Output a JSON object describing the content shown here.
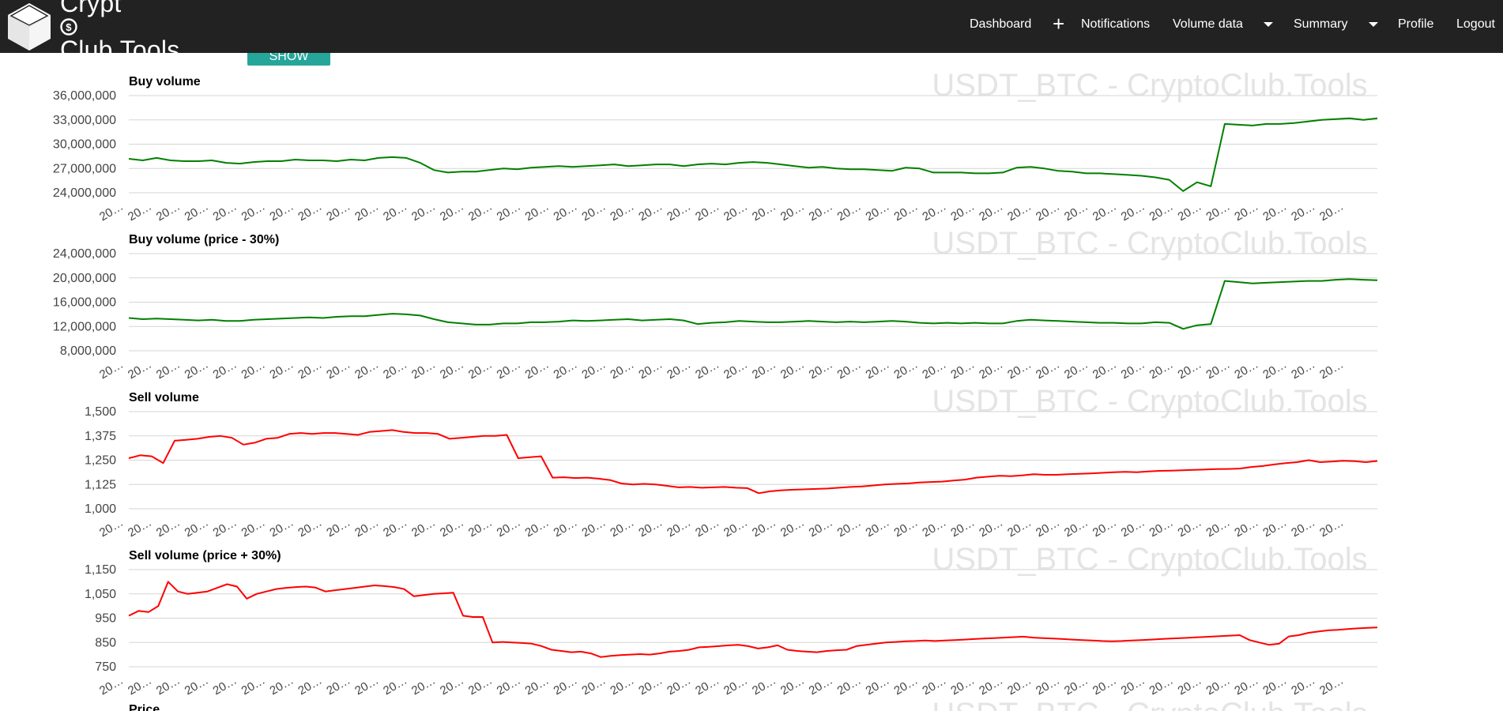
{
  "brand": {
    "name": "CryptoClub.Tools",
    "prefix": "Crypt",
    "suffix": "Club.Tools"
  },
  "nav": {
    "dashboard": "Dashboard",
    "notifications": "Notifications",
    "volume_data": "Volume data",
    "summary": "Summary",
    "profile": "Profile",
    "logout": "Logout"
  },
  "controls": {
    "show_button": "Show"
  },
  "watermark": "USDT_BTC - CryptoClub.Tools",
  "partial_next_title": "Price",
  "x_tick_label": "20…",
  "colors": {
    "navbar": "#222222",
    "button": "#26a69a",
    "buy": "#008000",
    "sell": "#ff0000"
  },
  "chart_data": [
    {
      "type": "line",
      "title": "Buy volume",
      "color": "#008000",
      "yticks": [
        "36,000,000",
        "33,000,000",
        "30,000,000",
        "27,000,000",
        "24,000,000"
      ],
      "ylim": [
        24000000,
        36000000
      ],
      "x_tick_count": 44,
      "series": [
        {
          "values": [
            28200000,
            28000000,
            28300000,
            28000000,
            27900000,
            27900000,
            28000000,
            27700000,
            27600000,
            27800000,
            27900000,
            27900000,
            28100000,
            28000000,
            28000000,
            27900000,
            28100000,
            28000000,
            28300000,
            28400000,
            28300000,
            27700000,
            26800000,
            26500000,
            26600000,
            26600000,
            26800000,
            27000000,
            26900000,
            27100000,
            27200000,
            27300000,
            27200000,
            27300000,
            27400000,
            27500000,
            27300000,
            27400000,
            27500000,
            27500000,
            27300000,
            27500000,
            27600000,
            27500000,
            27700000,
            27800000,
            27700000,
            27500000,
            27300000,
            27100000,
            27200000,
            27000000,
            26900000,
            26900000,
            26800000,
            26700000,
            27100000,
            27000000,
            26500000,
            26500000,
            26500000,
            26400000,
            26400000,
            26500000,
            27100000,
            27200000,
            27000000,
            26700000,
            26600000,
            26400000,
            26400000,
            26300000,
            26200000,
            26100000,
            25900000,
            25600000,
            24200000,
            25300000,
            24800000,
            32500000,
            32400000,
            32300000,
            32500000,
            32500000,
            32600000,
            32800000,
            33000000,
            33100000,
            33200000,
            33000000,
            33200000
          ]
        }
      ]
    },
    {
      "type": "line",
      "title": "Buy volume (price - 30%)",
      "color": "#008000",
      "yticks": [
        "24,000,000",
        "20,000,000",
        "16,000,000",
        "12,000,000",
        "8,000,000"
      ],
      "ylim": [
        8000000,
        24000000
      ],
      "x_tick_count": 44,
      "series": [
        {
          "values": [
            13400000,
            13200000,
            13300000,
            13200000,
            13100000,
            13000000,
            13100000,
            12900000,
            12900000,
            13100000,
            13200000,
            13300000,
            13400000,
            13500000,
            13400000,
            13600000,
            13700000,
            13700000,
            13900000,
            14100000,
            14000000,
            13800000,
            13200000,
            12700000,
            12500000,
            12300000,
            12300000,
            12500000,
            12500000,
            12700000,
            12700000,
            12800000,
            13000000,
            12900000,
            13000000,
            13100000,
            13200000,
            13000000,
            13100000,
            13200000,
            13000000,
            12400000,
            12600000,
            12700000,
            12900000,
            12800000,
            12700000,
            12700000,
            12800000,
            12900000,
            12800000,
            12700000,
            12800000,
            12700000,
            12800000,
            12900000,
            12800000,
            12600000,
            12500000,
            12600000,
            12500000,
            12600000,
            12500000,
            12500000,
            12900000,
            13100000,
            13000000,
            12900000,
            12800000,
            12700000,
            12600000,
            12600000,
            12500000,
            12500000,
            12700000,
            12600000,
            11600000,
            12200000,
            12400000,
            19500000,
            19300000,
            19100000,
            19200000,
            19300000,
            19400000,
            19500000,
            19500000,
            19700000,
            19800000,
            19700000,
            19600000
          ]
        }
      ]
    },
    {
      "type": "line",
      "title": "Sell volume",
      "color": "#ff0000",
      "yticks": [
        "1,500",
        "1,375",
        "1,250",
        "1,125",
        "1,000"
      ],
      "ylim": [
        1000,
        1500
      ],
      "x_tick_count": 44,
      "series": [
        {
          "values": [
            1260,
            1275,
            1270,
            1235,
            1350,
            1355,
            1360,
            1370,
            1375,
            1365,
            1330,
            1340,
            1360,
            1365,
            1385,
            1390,
            1385,
            1390,
            1390,
            1385,
            1380,
            1395,
            1400,
            1405,
            1395,
            1390,
            1390,
            1385,
            1360,
            1365,
            1370,
            1375,
            1375,
            1380,
            1260,
            1265,
            1270,
            1160,
            1162,
            1158,
            1160,
            1155,
            1148,
            1130,
            1125,
            1128,
            1125,
            1118,
            1110,
            1112,
            1108,
            1110,
            1112,
            1108,
            1106,
            1080,
            1090,
            1095,
            1098,
            1100,
            1102,
            1104,
            1108,
            1112,
            1115,
            1120,
            1125,
            1128,
            1130,
            1135,
            1138,
            1140,
            1145,
            1150,
            1160,
            1165,
            1170,
            1168,
            1172,
            1178,
            1175,
            1175,
            1178,
            1180,
            1182,
            1185,
            1188,
            1190,
            1188,
            1192,
            1195,
            1196,
            1198,
            1200,
            1202,
            1204,
            1205,
            1207,
            1215,
            1220,
            1228,
            1235,
            1240,
            1250,
            1240,
            1243,
            1247,
            1245,
            1240,
            1246
          ]
        }
      ]
    },
    {
      "type": "line",
      "title": "Sell volume (price + 30%)",
      "color": "#ff0000",
      "yticks": [
        "1,150",
        "1,050",
        "950",
        "850",
        "750"
      ],
      "ylim": [
        750,
        1150
      ],
      "x_tick_count": 44,
      "series": [
        {
          "values": [
            960,
            980,
            975,
            1000,
            1100,
            1060,
            1050,
            1055,
            1060,
            1075,
            1090,
            1080,
            1030,
            1050,
            1060,
            1070,
            1075,
            1078,
            1080,
            1076,
            1060,
            1065,
            1070,
            1075,
            1080,
            1085,
            1082,
            1078,
            1070,
            1040,
            1045,
            1050,
            1052,
            1055,
            960,
            955,
            955,
            850,
            852,
            850,
            848,
            845,
            835,
            820,
            815,
            810,
            812,
            805,
            790,
            795,
            798,
            800,
            802,
            800,
            805,
            812,
            815,
            820,
            830,
            832,
            835,
            838,
            840,
            835,
            825,
            830,
            838,
            820,
            815,
            812,
            810,
            815,
            818,
            820,
            835,
            840,
            845,
            850,
            852,
            855,
            856,
            858,
            856,
            858,
            860,
            862,
            864,
            866,
            868,
            870,
            872,
            874,
            870,
            868,
            866,
            864,
            862,
            860,
            858,
            856,
            855,
            856,
            858,
            860,
            862,
            864,
            866,
            868,
            870,
            872,
            874,
            876,
            878,
            880,
            860,
            850,
            840,
            845,
            875,
            880,
            890,
            895,
            900,
            902,
            905,
            908,
            910,
            912
          ]
        }
      ]
    }
  ]
}
